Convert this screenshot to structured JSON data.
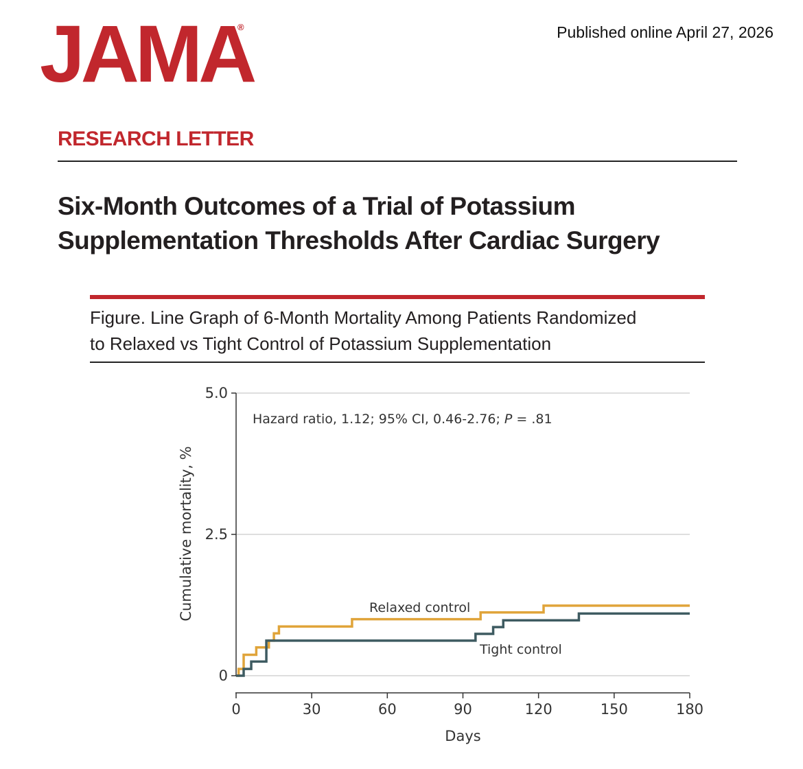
{
  "header": {
    "logo_text": "JAMA",
    "logo_registered": "®",
    "published": "Published online April 27, 2026"
  },
  "article": {
    "section": "RESEARCH LETTER",
    "title_line1": "Six-Month Outcomes of a Trial of Potassium",
    "title_line2": "Supplementation Thresholds After Cardiac Surgery"
  },
  "figure": {
    "caption_line1": "Figure. Line Graph of 6-Month Mortality Among Patients Randomized",
    "caption_line2": "to Relaxed vs Tight Control of Potassium Supplementation"
  },
  "colors": {
    "brand_red": "#c1272d",
    "relaxed": "#e0a43a",
    "tight": "#3e5b61"
  },
  "chart_data": {
    "type": "line",
    "step": true,
    "xlabel": "Days",
    "ylabel": "Cumulative mortality, %",
    "xlim": [
      0,
      180
    ],
    "ylim": [
      0,
      5.0
    ],
    "xticks": [
      "0",
      "30",
      "60",
      "90",
      "120",
      "150",
      "180"
    ],
    "xtick_values": [
      0,
      30,
      60,
      90,
      120,
      150,
      180
    ],
    "yticks": [
      "0",
      "2.5",
      "5.0"
    ],
    "ytick_values": [
      0,
      2.5,
      5.0
    ],
    "gridlines": "horizontal",
    "annotation": {
      "prefix": "Hazard ratio, 1.12; 95% CI, 0.46-2.76; ",
      "p_label": "P",
      "suffix": " = .81"
    },
    "series": [
      {
        "name": "Relaxed control",
        "color": "#e0a43a",
        "x": [
          0,
          1,
          3,
          8,
          13,
          15,
          17,
          46,
          97,
          122,
          180
        ],
        "y": [
          0,
          0.12,
          0.37,
          0.5,
          0.62,
          0.75,
          0.87,
          1.0,
          1.12,
          1.24,
          1.24
        ]
      },
      {
        "name": "Tight control",
        "color": "#3e5b61",
        "x": [
          0,
          3,
          6,
          12,
          95,
          102,
          106,
          136,
          180
        ],
        "y": [
          0,
          0.12,
          0.25,
          0.62,
          0.74,
          0.86,
          0.98,
          1.1,
          1.1
        ]
      }
    ]
  }
}
